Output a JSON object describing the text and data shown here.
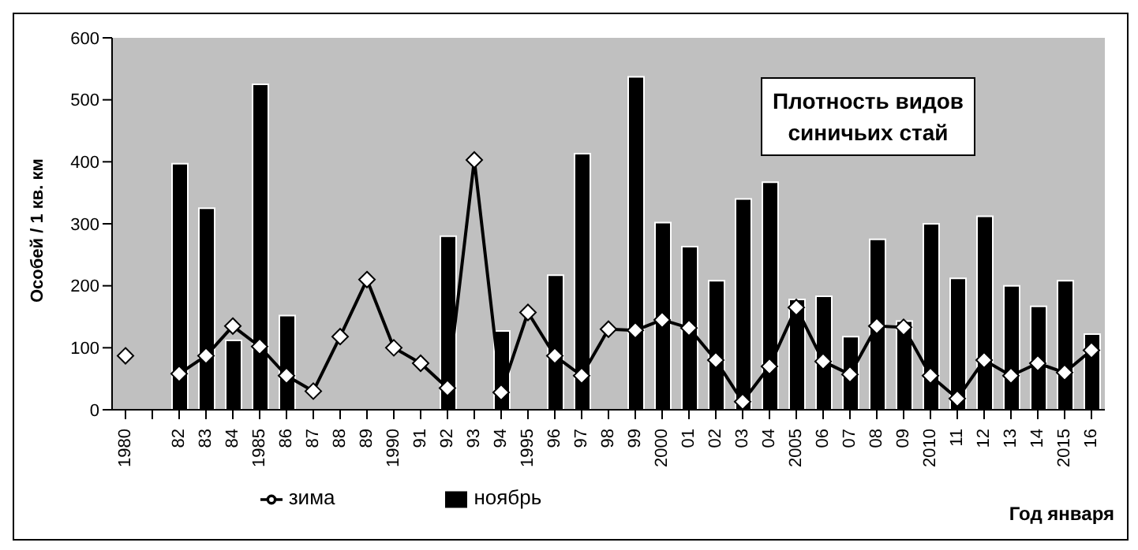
{
  "chart_data": {
    "type": "bar",
    "title": "Плотность видов синичьих стай",
    "xlabel": "Год января",
    "ylabel": "Особей / 1 кв. км",
    "categories": [
      "1980",
      null,
      "82",
      "83",
      "84",
      "1985",
      "86",
      "87",
      "88",
      "89",
      "1990",
      "91",
      "92",
      "93",
      "94",
      "1995",
      "96",
      "97",
      "98",
      "99",
      "2000",
      "01",
      "02",
      "03",
      "04",
      "2005",
      "06",
      "07",
      "08",
      "09",
      "2010",
      "11",
      "12",
      "13",
      "14",
      "2015",
      "16"
    ],
    "series": [
      {
        "name": "ноябрь",
        "color": "#000000",
        "values": [
          null,
          null,
          397,
          325,
          112,
          525,
          152,
          null,
          null,
          null,
          null,
          null,
          280,
          null,
          127,
          null,
          217,
          413,
          null,
          537,
          302,
          263,
          208,
          340,
          367,
          178,
          183,
          118,
          275,
          143,
          300,
          212,
          312,
          200,
          167,
          208,
          122
        ]
      },
      {
        "name": "зима",
        "type": "line",
        "color": "#000000",
        "marker": "diamond",
        "values": [
          87,
          null,
          58,
          87,
          135,
          102,
          55,
          30,
          118,
          210,
          100,
          75,
          35,
          403,
          28,
          157,
          87,
          55,
          130,
          128,
          145,
          132,
          80,
          13,
          70,
          165,
          78,
          57,
          135,
          133,
          55,
          18,
          80,
          55,
          75,
          60,
          96
        ]
      }
    ],
    "ylim": [
      0,
      600
    ],
    "yticks": [
      0,
      100,
      200,
      300,
      400,
      500,
      600
    ],
    "grid": false,
    "legend": "bottom"
  }
}
